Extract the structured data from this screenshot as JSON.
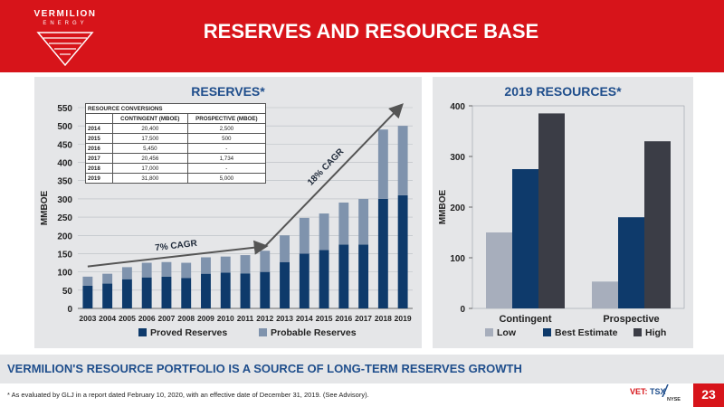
{
  "header": {
    "brand": "VERMILION",
    "brand_sub": "ENERGY",
    "title": "RESERVES AND RESOURCE BASE"
  },
  "colors": {
    "red": "#d7141a",
    "navy": "#0e3a6b",
    "proved": "#0e3a6b",
    "probable": "#7f93ad",
    "low": "#a7aebc",
    "best": "#0e3a6b",
    "high": "#3b3d46",
    "panel": "#e5e6e8"
  },
  "conversions_table": {
    "title": "RESOURCE CONVERSIONS",
    "col_contingent": "CONTINGENT (MBOE)",
    "col_prospective": "PROSPECTIVE (MBOE)",
    "rows": [
      {
        "year": "2014",
        "contingent": "20,400",
        "prospective": "2,500"
      },
      {
        "year": "2015",
        "contingent": "17,500",
        "prospective": "500"
      },
      {
        "year": "2016",
        "contingent": "5,450",
        "prospective": "-"
      },
      {
        "year": "2017",
        "contingent": "20,456",
        "prospective": "1,734"
      },
      {
        "year": "2018",
        "contingent": "17,000",
        "prospective": "-"
      },
      {
        "year": "2019",
        "contingent": "31,800",
        "prospective": "5,000"
      }
    ]
  },
  "chart_data": [
    {
      "type": "bar",
      "title": "RESERVES*",
      "ylabel": "MMBOE",
      "xlabel": "",
      "ylim": [
        0,
        550
      ],
      "yticks": [
        0,
        50,
        100,
        150,
        200,
        250,
        300,
        350,
        400,
        450,
        500,
        550
      ],
      "stacked": true,
      "categories": [
        "2003",
        "2004",
        "2005",
        "2006",
        "2007",
        "2008",
        "2009",
        "2010",
        "2011",
        "2012",
        "2013",
        "2014",
        "2015",
        "2016",
        "2017",
        "2018",
        "2019"
      ],
      "series": [
        {
          "name": "Proved Reserves",
          "values": [
            62,
            68,
            80,
            85,
            87,
            83,
            95,
            98,
            96,
            100,
            127,
            150,
            160,
            175,
            175,
            300,
            310
          ]
        },
        {
          "name": "Probable Reserves",
          "values": [
            25,
            27,
            33,
            40,
            40,
            42,
            45,
            44,
            50,
            58,
            73,
            98,
            100,
            115,
            125,
            190,
            190
          ]
        }
      ],
      "annotations": [
        {
          "text": "7% CAGR",
          "from": [
            2003,
            115
          ],
          "to": [
            2012,
            170
          ]
        },
        {
          "text": "18% CAGR",
          "from": [
            2012,
            170
          ],
          "to": [
            2019,
            555
          ]
        }
      ],
      "legend": "bottom",
      "grid": true
    },
    {
      "type": "bar",
      "title": "2019 RESOURCES*",
      "ylabel": "MMBOE",
      "xlabel": "",
      "ylim": [
        0,
        400
      ],
      "yticks": [
        0,
        100,
        200,
        300,
        400
      ],
      "categories": [
        "Contingent",
        "Prospective"
      ],
      "series": [
        {
          "name": "Low",
          "values": [
            150,
            53
          ]
        },
        {
          "name": "Best Estimate",
          "values": [
            275,
            180
          ]
        },
        {
          "name": "High",
          "values": [
            385,
            330
          ]
        }
      ],
      "legend": "bottom",
      "grid": false
    }
  ],
  "tagline": "VERMILION'S RESOURCE PORTFOLIO IS A SOURCE OF LONG-TERM RESERVES GROWTH",
  "footnote": "* As evaluated by GLJ in a report dated February 10, 2020, with an effective date of December 31, 2019. (See Advisory).",
  "ticker": {
    "vet": "VET:",
    "tsx": "TSX",
    "nyse": "NYSE"
  },
  "page_number": "23"
}
